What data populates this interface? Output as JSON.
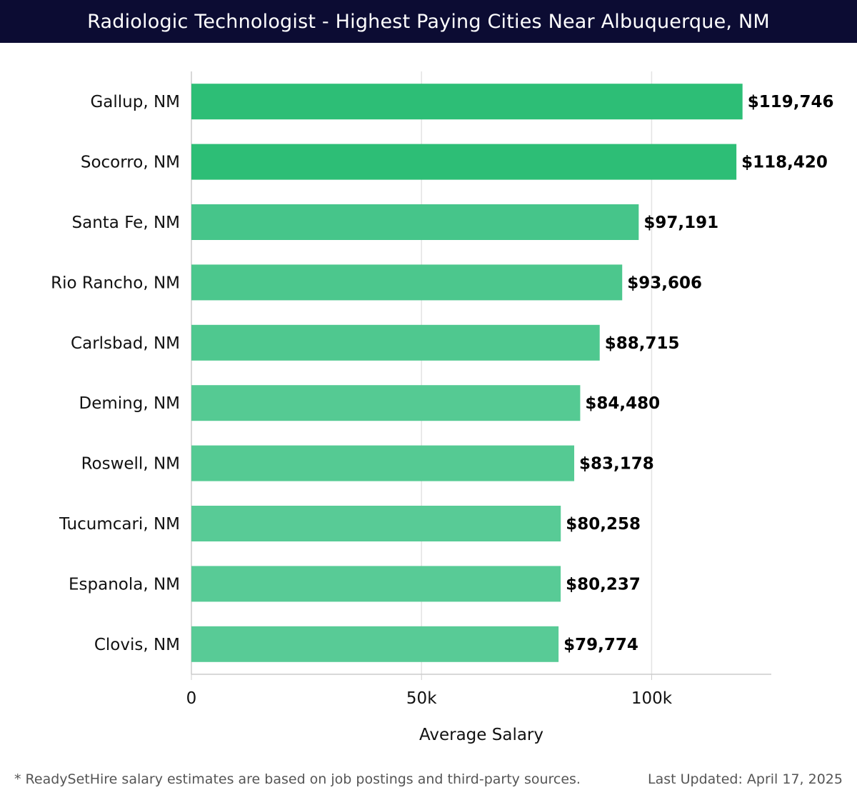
{
  "header": {
    "title": "Radiologic Technologist - Highest Paying Cities Near Albuquerque, NM"
  },
  "chart_data": {
    "type": "bar",
    "orientation": "horizontal",
    "title": "Radiologic Technologist - Highest Paying Cities Near Albuquerque, NM",
    "xlabel": "Average Salary",
    "ylabel": "",
    "xlim": [
      0,
      126000
    ],
    "x_ticks": [
      {
        "value": 0,
        "label": "0"
      },
      {
        "value": 50000,
        "label": "50k"
      },
      {
        "value": 100000,
        "label": "100k"
      }
    ],
    "grid": "vertical",
    "categories": [
      "Gallup, NM",
      "Socorro, NM",
      "Santa Fe, NM",
      "Rio Rancho, NM",
      "Carlsbad, NM",
      "Deming, NM",
      "Roswell, NM",
      "Tucumcari, NM",
      "Espanola, NM",
      "Clovis, NM"
    ],
    "values": [
      119746,
      118420,
      97191,
      93606,
      88715,
      84480,
      83178,
      80258,
      80237,
      79774
    ],
    "value_labels": [
      "$119,746",
      "$118,420",
      "$97,191",
      "$93,606",
      "$88,715",
      "$84,480",
      "$83,178",
      "$80,258",
      "$80,237",
      "$79,774"
    ],
    "bar_colors": [
      "#2dbe76",
      "#2dbe76",
      "#46c58a",
      "#4cc78d",
      "#4fc88f",
      "#55ca93",
      "#55ca93",
      "#58cb96",
      "#58cb96",
      "#58cb96"
    ]
  },
  "footer": {
    "note": "* ReadySetHire salary estimates are based on job postings and third-party sources.",
    "updated": "Last Updated: April 17, 2025"
  }
}
